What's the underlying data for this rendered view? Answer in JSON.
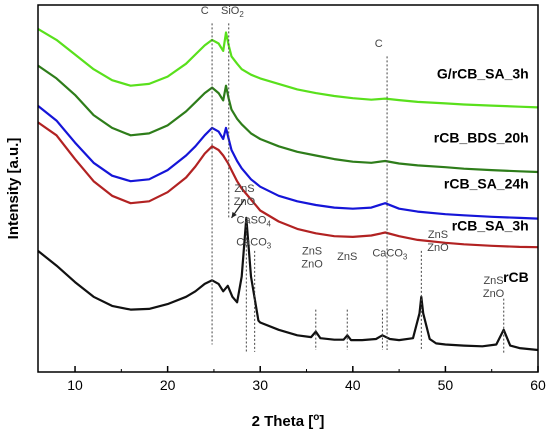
{
  "chart_data": {
    "type": "line",
    "title": "",
    "xlabel": "2 Theta [",
    "xlabel_degree": "o",
    "xlabel_close": "]",
    "ylabel": "Intensity [a.u.]",
    "xlim": [
      6,
      60
    ],
    "xticks": [
      10,
      20,
      30,
      40,
      50,
      60
    ],
    "xtick_labels": [
      "10",
      "20",
      "30",
      "40",
      "50",
      "60"
    ],
    "grid": false,
    "legend": "none",
    "series": [
      {
        "name": "G/rCB_SA_3h",
        "color": "#59e01c",
        "x": [
          6,
          8,
          10,
          12,
          14,
          16,
          18,
          20,
          22,
          23,
          24,
          24.8,
          25.5,
          26,
          26.3,
          26.6,
          26.9,
          27.5,
          28,
          29,
          30,
          32,
          34,
          36,
          38,
          40,
          42,
          43.5,
          45,
          47,
          50,
          52,
          55,
          58,
          60
        ],
        "y": [
          0.935,
          0.905,
          0.865,
          0.825,
          0.795,
          0.78,
          0.785,
          0.805,
          0.84,
          0.865,
          0.89,
          0.905,
          0.895,
          0.875,
          0.925,
          0.89,
          0.86,
          0.84,
          0.825,
          0.81,
          0.8,
          0.785,
          0.77,
          0.76,
          0.752,
          0.746,
          0.742,
          0.745,
          0.741,
          0.736,
          0.732,
          0.729,
          0.726,
          0.723,
          0.721
        ]
      },
      {
        "name": "rCB_BDS_20h",
        "color": "#2e7d1a",
        "x": [
          6,
          8,
          10,
          12,
          14,
          16,
          18,
          20,
          22,
          23,
          24,
          24.8,
          25.5,
          26,
          26.3,
          26.6,
          26.9,
          27.5,
          28,
          29,
          30,
          32,
          34,
          36,
          38,
          40,
          42,
          43.5,
          45,
          47,
          50,
          52,
          55,
          58,
          60
        ],
        "y": [
          0.835,
          0.8,
          0.755,
          0.7,
          0.665,
          0.645,
          0.65,
          0.672,
          0.71,
          0.735,
          0.76,
          0.775,
          0.76,
          0.74,
          0.78,
          0.745,
          0.715,
          0.69,
          0.675,
          0.65,
          0.635,
          0.615,
          0.6,
          0.59,
          0.58,
          0.573,
          0.57,
          0.575,
          0.568,
          0.563,
          0.558,
          0.554,
          0.55,
          0.547,
          0.545
        ]
      },
      {
        "name": "rCB_SA_24h",
        "color": "#1515d8",
        "x": [
          6,
          8,
          10,
          12,
          14,
          16,
          18,
          20,
          22,
          23,
          24,
          24.8,
          25.5,
          26,
          26.3,
          26.6,
          26.9,
          27.5,
          28,
          29,
          30,
          32,
          34,
          36,
          38,
          40,
          42,
          43.5,
          45,
          47,
          50,
          52,
          55,
          58,
          60
        ],
        "y": [
          0.725,
          0.685,
          0.625,
          0.57,
          0.535,
          0.52,
          0.525,
          0.55,
          0.59,
          0.615,
          0.645,
          0.665,
          0.655,
          0.635,
          0.665,
          0.635,
          0.605,
          0.575,
          0.555,
          0.525,
          0.505,
          0.48,
          0.465,
          0.455,
          0.448,
          0.445,
          0.448,
          0.46,
          0.445,
          0.437,
          0.43,
          0.427,
          0.423,
          0.42,
          0.418
        ]
      },
      {
        "name": "rCB_SA_3h",
        "color": "#b22222",
        "x": [
          6,
          8,
          10,
          12,
          14,
          16,
          18,
          20,
          22,
          23,
          24,
          24.8,
          25.5,
          26,
          26.5,
          27,
          27.5,
          28,
          29,
          30,
          32,
          34,
          36,
          38,
          40,
          42,
          43.5,
          45,
          47,
          50,
          52,
          55,
          58,
          60
        ],
        "y": [
          0.68,
          0.645,
          0.58,
          0.52,
          0.48,
          0.46,
          0.465,
          0.49,
          0.53,
          0.56,
          0.595,
          0.615,
          0.605,
          0.59,
          0.57,
          0.545,
          0.52,
          0.5,
          0.47,
          0.44,
          0.41,
          0.39,
          0.378,
          0.37,
          0.368,
          0.372,
          0.38,
          0.37,
          0.36,
          0.352,
          0.348,
          0.344,
          0.341,
          0.34
        ]
      },
      {
        "name": "rCB",
        "color": "#111111",
        "x": [
          6,
          8,
          10,
          12,
          14,
          16,
          18,
          20,
          22,
          23,
          24,
          24.8,
          25.5,
          26,
          26.5,
          27,
          27.5,
          28,
          28.5,
          29,
          29.4,
          29.8,
          30,
          32,
          34,
          35.5,
          36,
          36.5,
          38,
          39,
          39.4,
          39.8,
          41,
          42.5,
          43.2,
          44,
          45,
          46.5,
          47.2,
          47.4,
          47.6,
          48.3,
          49,
          50,
          52,
          54,
          55.5,
          56.3,
          57,
          58,
          60
        ],
        "y": [
          0.33,
          0.29,
          0.245,
          0.205,
          0.18,
          0.17,
          0.172,
          0.185,
          0.205,
          0.22,
          0.24,
          0.25,
          0.24,
          0.22,
          0.235,
          0.205,
          0.19,
          0.26,
          0.42,
          0.26,
          0.2,
          0.14,
          0.135,
          0.115,
          0.1,
          0.095,
          0.11,
          0.092,
          0.088,
          0.088,
          0.1,
          0.087,
          0.087,
          0.09,
          0.1,
          0.09,
          0.087,
          0.092,
          0.16,
          0.205,
          0.16,
          0.09,
          0.078,
          0.075,
          0.072,
          0.07,
          0.075,
          0.115,
          0.072,
          0.065,
          0.06
        ]
      }
    ],
    "reference_lines": [
      {
        "label": "C",
        "x": 24.8,
        "y_top": 0.95,
        "y_bottom": 0.075
      },
      {
        "label": "SiO2",
        "x": 26.6,
        "y_top": 0.95,
        "y_bottom": 0.42
      },
      {
        "label": "C",
        "x": 43.7,
        "y_top": 0.86,
        "y_bottom": 0.06
      },
      {
        "label": "CaSO4",
        "x": 28.5,
        "y_top": 0.41,
        "y_bottom": 0.055
      },
      {
        "label": "CaCO3",
        "x": 29.4,
        "y_top": 0.33,
        "y_bottom": 0.055
      },
      {
        "label": "ZnS ZnO",
        "x": 36.0,
        "y_top": 0.17,
        "y_bottom": 0.06
      },
      {
        "label": "ZnS",
        "x": 39.4,
        "y_top": 0.17,
        "y_bottom": 0.06
      },
      {
        "label": "CaCO3",
        "x": 43.2,
        "y_top": 0.17,
        "y_bottom": 0.06
      },
      {
        "label": "ZnS ZnO",
        "x": 47.4,
        "y_top": 0.33,
        "y_bottom": 0.06
      },
      {
        "label": "ZnS ZnO",
        "x": 56.3,
        "y_top": 0.2,
        "y_bottom": 0.05
      }
    ],
    "annotations": [
      {
        "key": "c1",
        "text": "C",
        "x": 24.0,
        "y": 0.975
      },
      {
        "key": "sio2",
        "text": "SiO",
        "sub": "2",
        "x": 27.0,
        "y": 0.975
      },
      {
        "key": "c2",
        "text": "C",
        "x": 42.8,
        "y": 0.885
      },
      {
        "key": "zns_a",
        "text": "ZnS",
        "x": 28.3,
        "y": 0.49
      },
      {
        "key": "zno_a",
        "text": "ZnO",
        "x": 28.3,
        "y": 0.455
      },
      {
        "key": "caso4",
        "text": "CaSO",
        "sub": "4",
        "x": 29.3,
        "y": 0.405
      },
      {
        "key": "caco3_a",
        "text": "CaCO",
        "sub": "3",
        "x": 29.3,
        "y": 0.345
      },
      {
        "key": "zns_b",
        "text": "ZnS",
        "x": 35.6,
        "y": 0.32
      },
      {
        "key": "zno_b",
        "text": "ZnO",
        "x": 35.6,
        "y": 0.285
      },
      {
        "key": "zns_c",
        "text": "ZnS",
        "x": 39.4,
        "y": 0.305
      },
      {
        "key": "caco3_b",
        "text": "CaCO",
        "sub": "3",
        "x": 44.0,
        "y": 0.315
      },
      {
        "key": "zns_d",
        "text": "ZnS",
        "x": 49.2,
        "y": 0.365
      },
      {
        "key": "zno_d",
        "text": "ZnO",
        "x": 49.2,
        "y": 0.33
      },
      {
        "key": "zns_e",
        "text": "ZnS",
        "x": 55.2,
        "y": 0.24
      },
      {
        "key": "zno_e",
        "text": "ZnO",
        "x": 55.2,
        "y": 0.205
      }
    ],
    "arrow": {
      "from_x": 28.3,
      "from_y": 0.47,
      "to_x": 26.9,
      "to_y": 0.42
    },
    "series_labels": [
      {
        "series": "G/rCB_SA_3h",
        "x": 59.0,
        "y": 0.8
      },
      {
        "series": "rCB_BDS_20h",
        "x": 59.0,
        "y": 0.625
      },
      {
        "series": "rCB_SA_24h",
        "x": 59.0,
        "y": 0.5
      },
      {
        "series": "rCB_SA_3h",
        "x": 59.0,
        "y": 0.385
      },
      {
        "series": "rCB",
        "x": 59.0,
        "y": 0.245
      }
    ]
  }
}
